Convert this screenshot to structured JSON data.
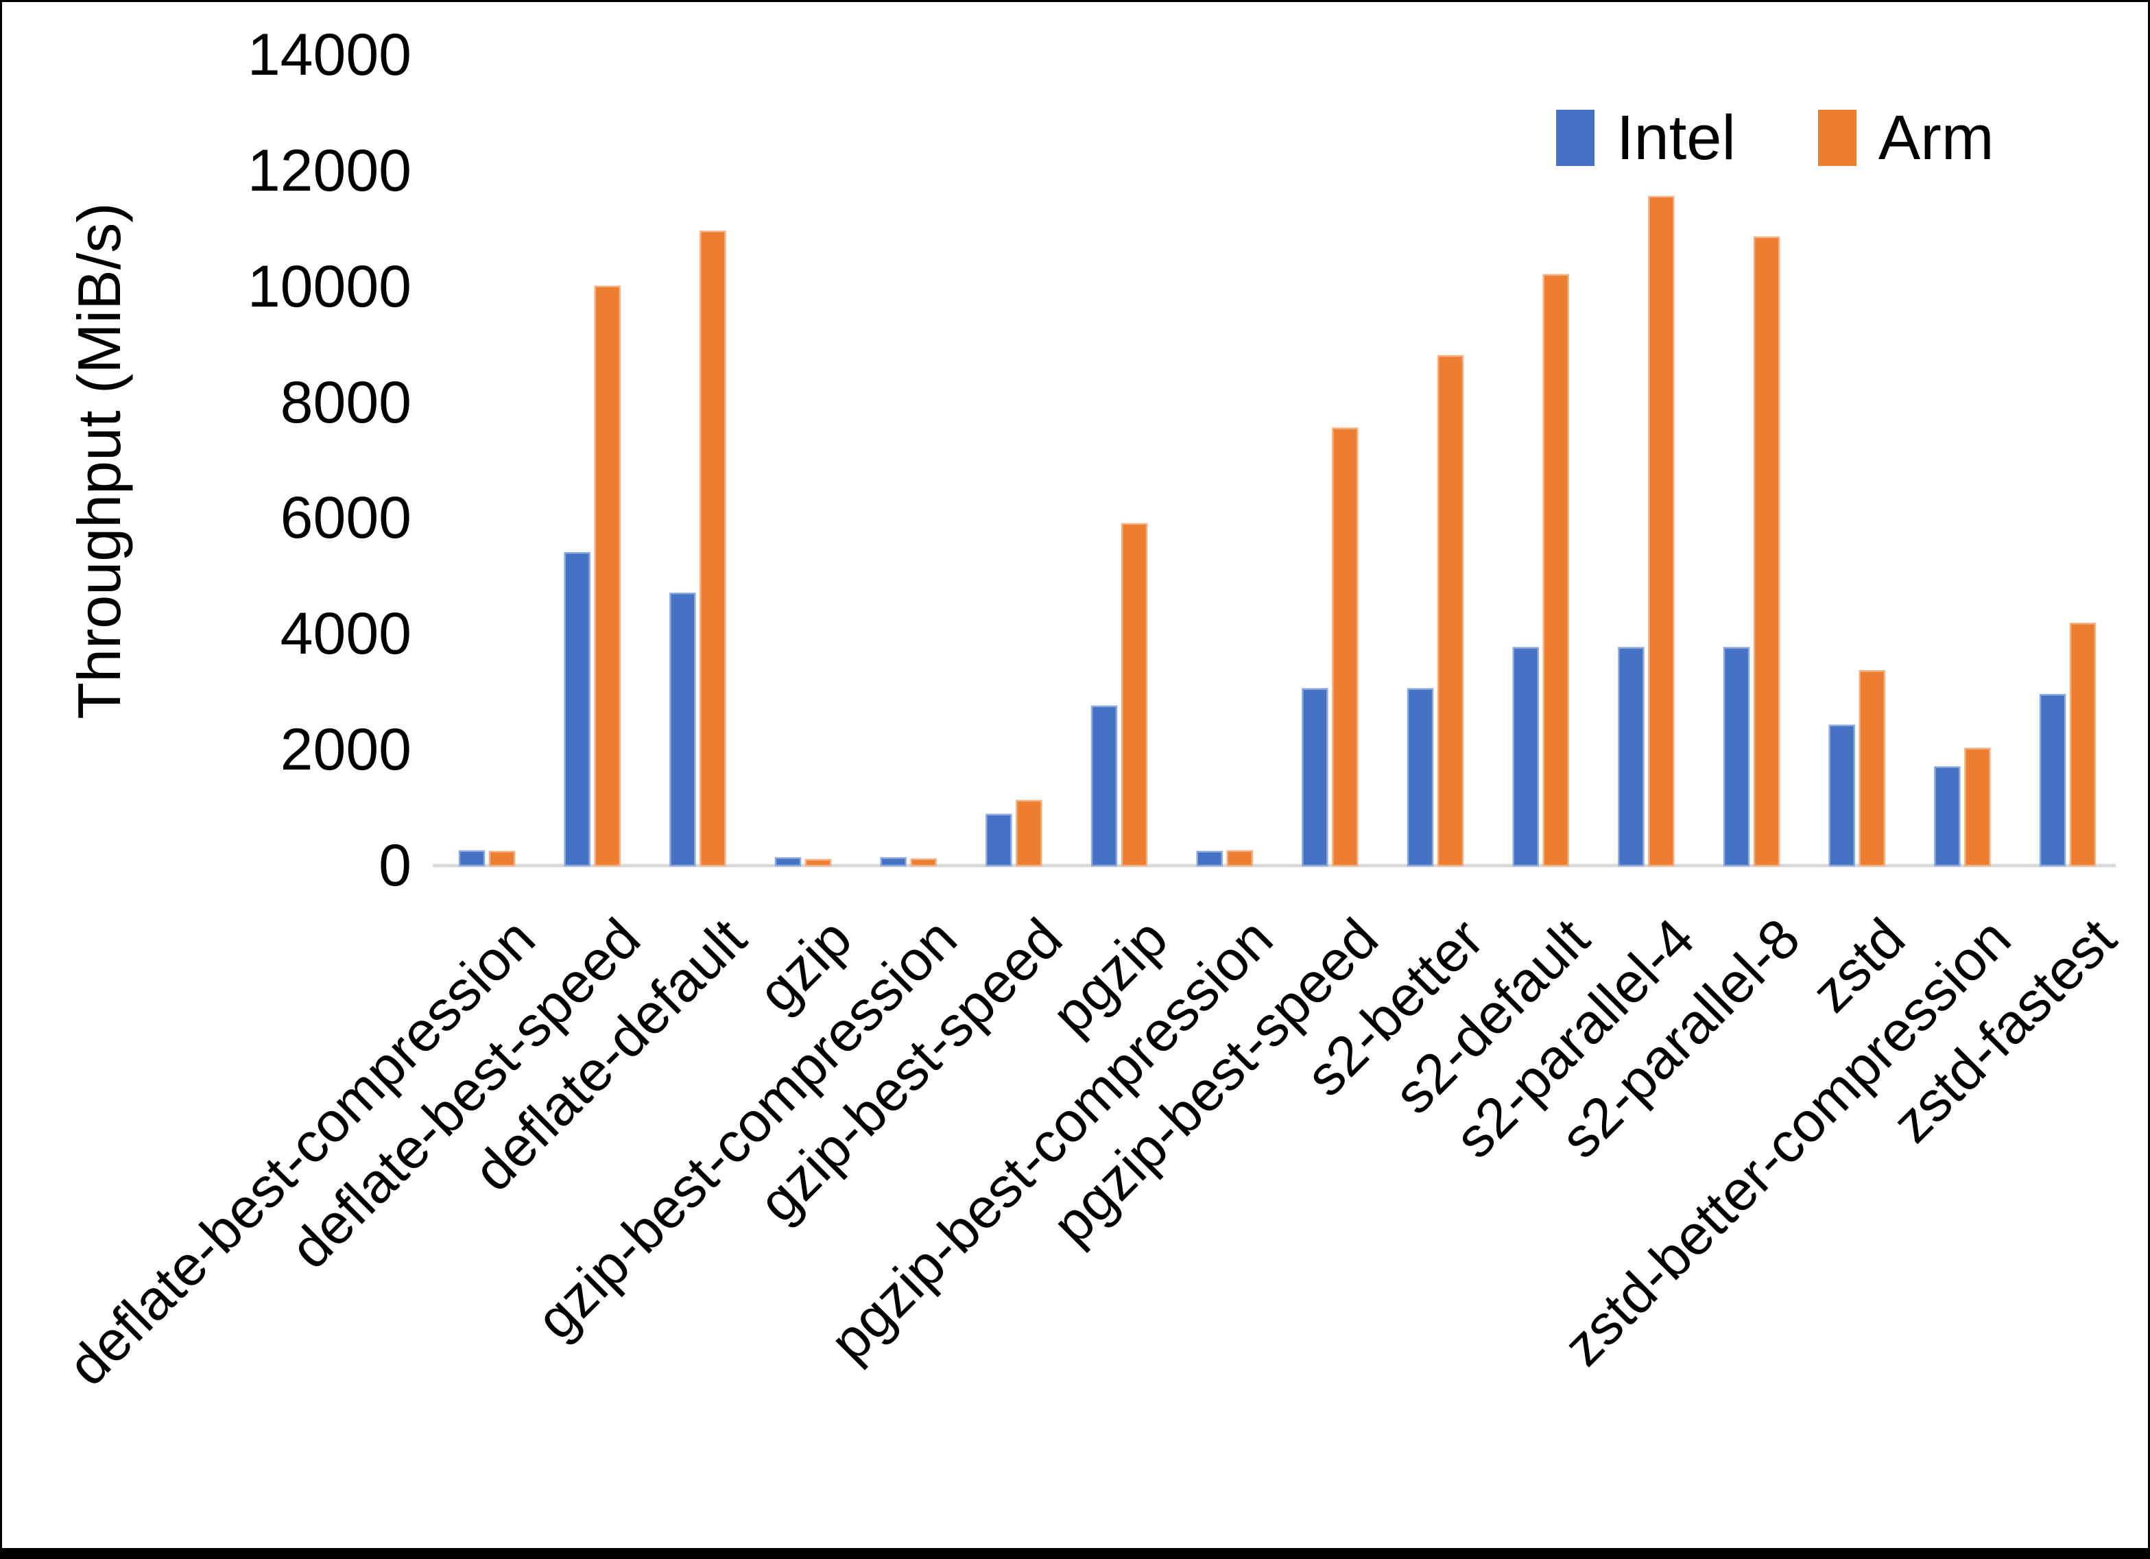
{
  "chart_data": {
    "type": "bar",
    "title": "",
    "ylabel": "Throughput (MiB/s)",
    "xlabel": "",
    "ylim": [
      0,
      14000
    ],
    "ytick_step": 2000,
    "yticks": [
      0,
      2000,
      4000,
      6000,
      8000,
      10000,
      12000,
      14000
    ],
    "grid": false,
    "legend_position": "top-right",
    "categories": [
      "deflate-best-compression",
      "deflate-best-speed",
      "deflate-default",
      "gzip",
      "gzip-best-compression",
      "gzip-best-speed",
      "pgzip",
      "pgzip-best-compression",
      "pgzip-best-speed",
      "s2-better",
      "s2-default",
      "s2-parallel-4",
      "s2-parallel-8",
      "zstd",
      "zstd-better-compression",
      "zstd-fastest"
    ],
    "series": [
      {
        "name": "Intel",
        "color": "#4472C4",
        "edge_color": "#8FAADC",
        "values": [
          250,
          5400,
          4700,
          130,
          130,
          880,
          2750,
          240,
          3050,
          3050,
          3760,
          3760,
          3760,
          2420,
          1700,
          2950
        ]
      },
      {
        "name": "Arm",
        "color": "#ED7D31",
        "edge_color": "#F4B183",
        "values": [
          240,
          10000,
          10950,
          100,
          110,
          1120,
          5900,
          250,
          7550,
          8800,
          10200,
          11550,
          10850,
          3360,
          2020,
          4180
        ]
      }
    ],
    "axis_line_color": "#D9D9D9",
    "text_color": "#000000"
  }
}
